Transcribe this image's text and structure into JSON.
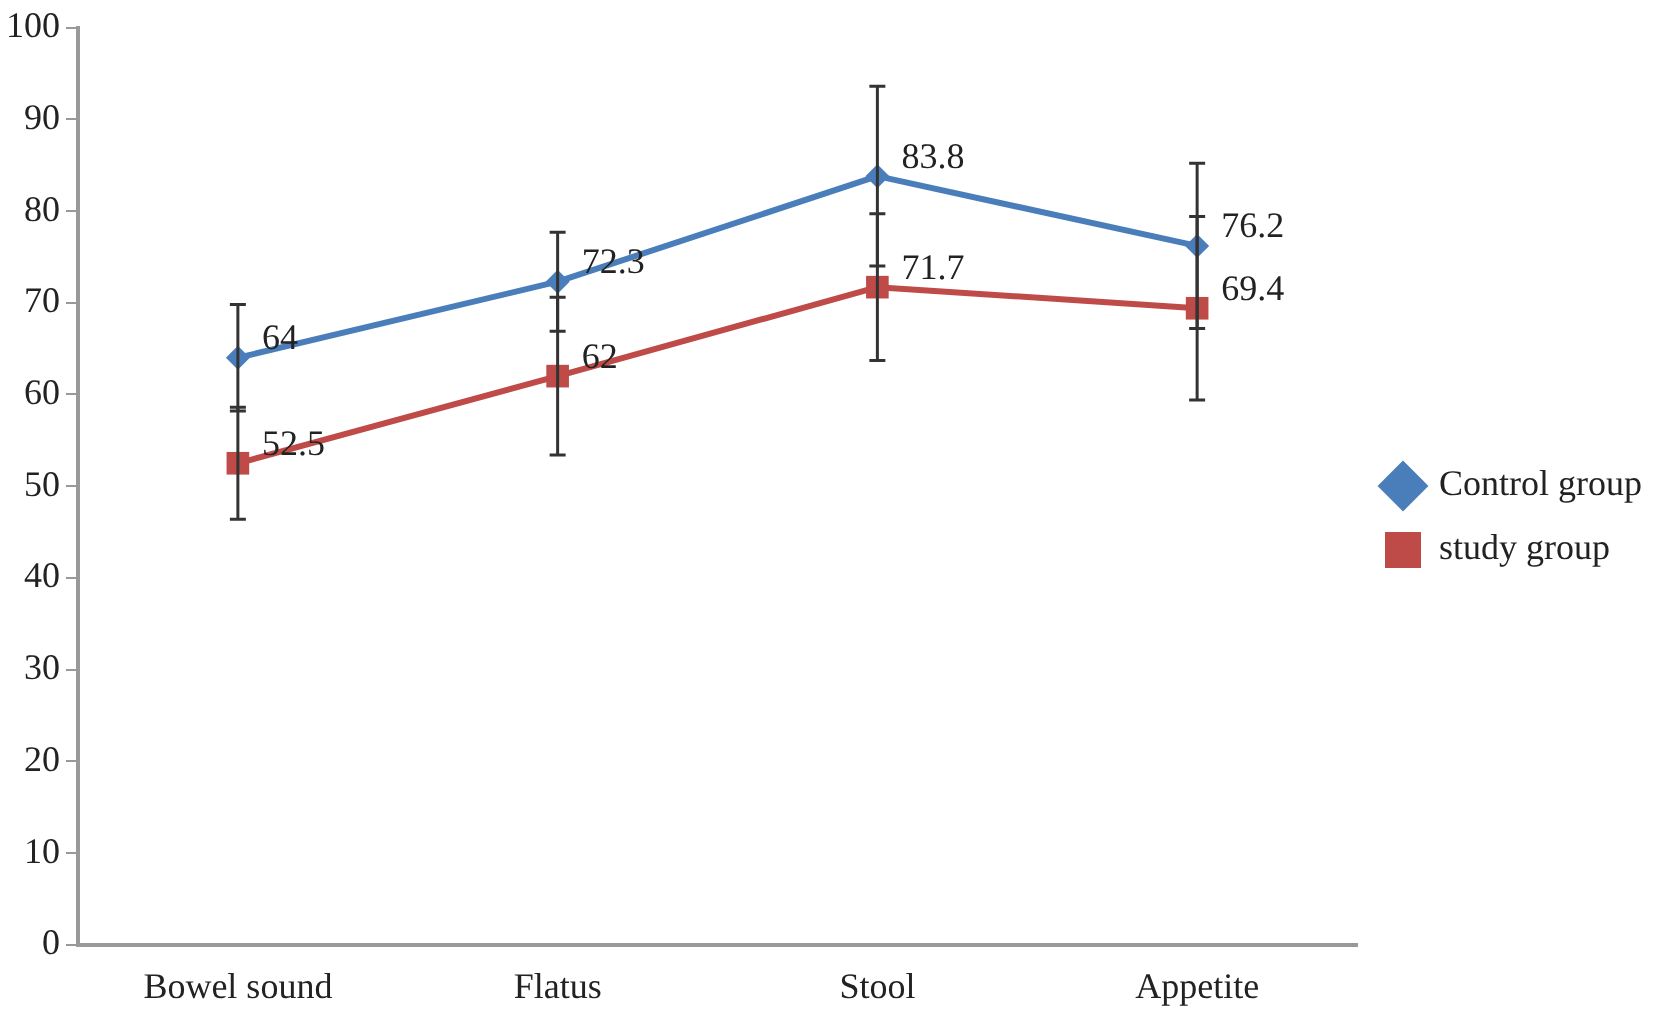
{
  "chart_data": {
    "type": "line",
    "categories": [
      "Bowel sound",
      "Flatus",
      "Stool",
      "Appetite"
    ],
    "series": [
      {
        "name": "Control group",
        "color": "#4a7ebb",
        "marker": "diamond",
        "values": [
          64,
          72.3,
          83.8,
          76.2
        ],
        "errors": [
          5.8,
          5.4,
          9.8,
          9
        ]
      },
      {
        "name": "study group",
        "color": "#be4b48",
        "marker": "square",
        "values": [
          52.5,
          62,
          71.7,
          69.4
        ],
        "errors": [
          6.1,
          8.6,
          8,
          10
        ]
      }
    ],
    "ylim": [
      0,
      100
    ],
    "yticks": [
      0,
      10,
      20,
      30,
      40,
      50,
      60,
      70,
      80,
      90,
      100
    ],
    "grid": false,
    "legend": "right",
    "data_labels": true,
    "line_style": "solid"
  }
}
